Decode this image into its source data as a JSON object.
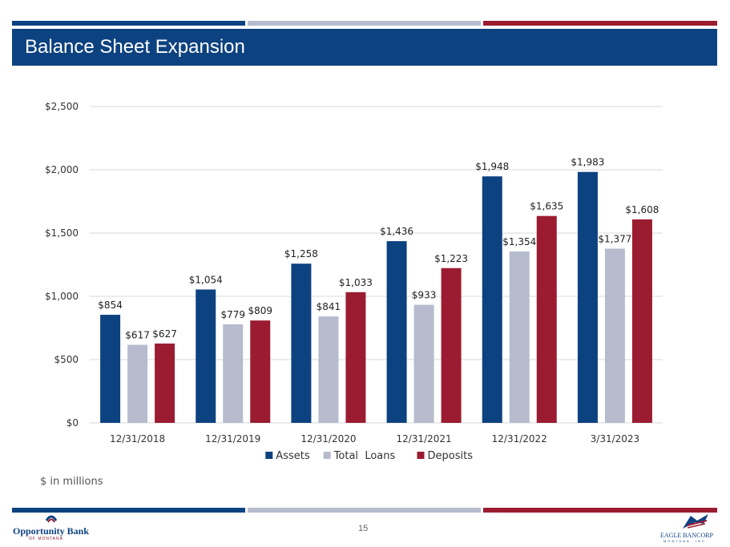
{
  "slide": {
    "title": "Balance Sheet Expansion",
    "units_note": "$ in millions",
    "page_number": "15"
  },
  "colors": {
    "navy": "#0d4280",
    "silver": "#b6bcce",
    "crimson": "#9b1c31"
  },
  "logos": {
    "left": {
      "name": "Opportunity Bank",
      "tagline": "OF MONTANA"
    },
    "right": {
      "name": "EAGLE BANCORP",
      "tagline": "MONTANA, INC."
    }
  },
  "chart_data": {
    "type": "bar",
    "title": "Balance Sheet Expansion",
    "xlabel": "",
    "ylabel": "",
    "ylim": [
      0,
      2500
    ],
    "yticks": [
      0,
      500,
      1000,
      1500,
      2000,
      2500
    ],
    "ytick_labels": [
      "$0",
      "$500",
      "$1,000",
      "$1,500",
      "$2,000",
      "$2,500"
    ],
    "grid": true,
    "legend_position": "bottom",
    "categories": [
      "12/31/2018",
      "12/31/2019",
      "12/31/2020",
      "12/31/2021",
      "12/31/2022",
      "3/31/2023"
    ],
    "series": [
      {
        "name": "Assets",
        "color": "#0d4280",
        "values": [
          854,
          1054,
          1258,
          1436,
          1948,
          1983
        ],
        "labels": [
          "$854",
          "$1,054",
          "$1,258",
          "$1,436",
          "$1,948",
          "$1,983"
        ]
      },
      {
        "name": "Total  Loans",
        "color": "#b6bcce",
        "values": [
          617,
          779,
          841,
          933,
          1354,
          1377
        ],
        "labels": [
          "$617",
          "$779",
          "$841",
          "$933",
          "$1,354",
          "$1,377"
        ]
      },
      {
        "name": "Deposits",
        "color": "#9b1c31",
        "values": [
          627,
          809,
          1033,
          1223,
          1635,
          1608
        ],
        "labels": [
          "$627",
          "$809",
          "$1,033",
          "$1,223",
          "$1,635",
          "$1,608"
        ]
      }
    ]
  }
}
